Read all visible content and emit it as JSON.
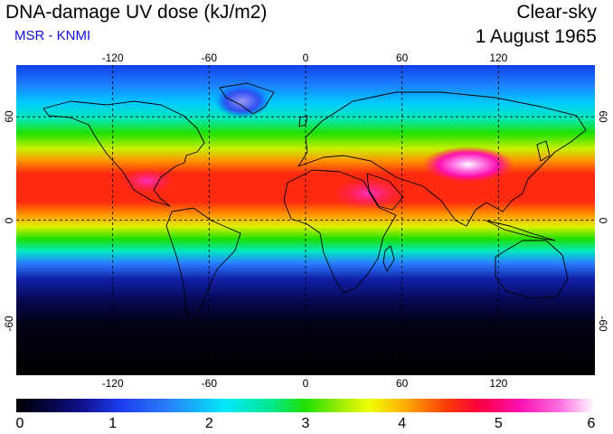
{
  "header": {
    "title": "DNA-damage UV dose (kJ/m2)",
    "source": "MSR - KNMI",
    "condition": "Clear-sky",
    "date": "1 August 1965"
  },
  "map": {
    "projection": "equirectangular",
    "lon_range": [
      -180,
      180
    ],
    "lat_range": [
      -90,
      90
    ],
    "lon_ticks": [
      {
        "value": -120,
        "label": "-120"
      },
      {
        "value": -60,
        "label": "-60"
      },
      {
        "value": 0,
        "label": "0"
      },
      {
        "value": 60,
        "label": "60"
      },
      {
        "value": 120,
        "label": "120"
      }
    ],
    "lat_ticks": [
      {
        "value": 60,
        "label": "60"
      },
      {
        "value": 0,
        "label": "0"
      },
      {
        "value": -60,
        "label": "-60"
      }
    ],
    "gridlines": "dashed",
    "coastlines": true
  },
  "colorbar": {
    "min": 0,
    "max": 6,
    "ticks": [
      {
        "value": 0,
        "label": "0"
      },
      {
        "value": 1,
        "label": "1"
      },
      {
        "value": 2,
        "label": "2"
      },
      {
        "value": 3,
        "label": "3"
      },
      {
        "value": 4,
        "label": "4"
      },
      {
        "value": 5,
        "label": "5"
      },
      {
        "value": 6,
        "label": "6"
      }
    ],
    "colors": [
      "#000000",
      "#101088",
      "#2a7cff",
      "#00e8ff",
      "#20e000",
      "#f0ff00",
      "#ff4000",
      "#ff0040",
      "#ff70e0",
      "#ffffff"
    ]
  }
}
